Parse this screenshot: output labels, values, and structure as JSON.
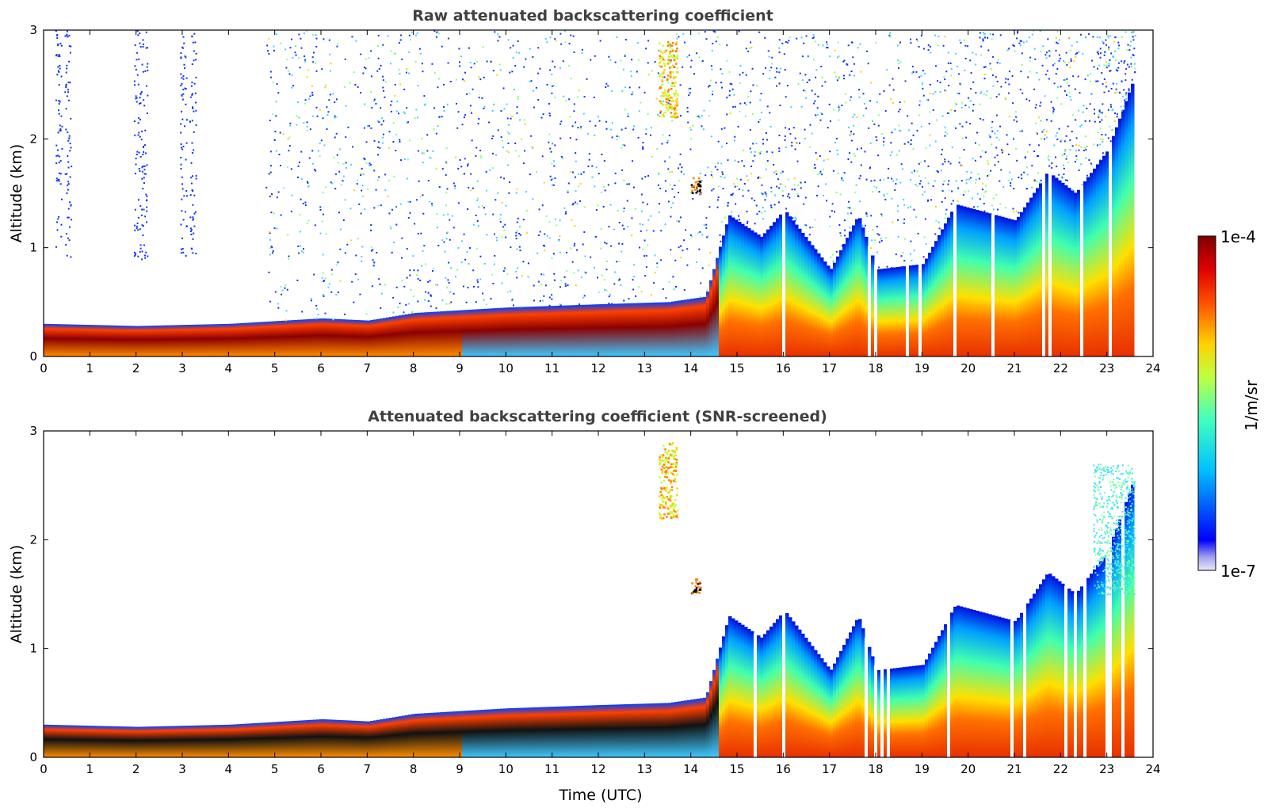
{
  "chart_data": [
    {
      "type": "heatmap",
      "title": "Raw attenuated backscattering coefficient",
      "xlabel": "",
      "ylabel": "Altitude (km)",
      "xlim": [
        0,
        24
      ],
      "ylim": [
        0,
        3
      ],
      "x_ticks": [
        "0",
        "1",
        "2",
        "3",
        "4",
        "5",
        "6",
        "7",
        "8",
        "9",
        "10",
        "11",
        "12",
        "13",
        "14",
        "15",
        "16",
        "17",
        "18",
        "19",
        "20",
        "21",
        "22",
        "23",
        "24"
      ],
      "y_ticks": [
        "0",
        "1",
        "2",
        "3"
      ],
      "screened": false,
      "boundary_layer_top_km": [
        [
          0,
          0.3
        ],
        [
          2,
          0.28
        ],
        [
          4,
          0.3
        ],
        [
          6,
          0.35
        ],
        [
          7,
          0.33
        ],
        [
          8,
          0.4
        ],
        [
          10,
          0.45
        ],
        [
          12,
          0.48
        ],
        [
          13.5,
          0.5
        ],
        [
          14.3,
          0.55
        ],
        [
          14.8,
          1.3
        ],
        [
          15.5,
          1.1
        ],
        [
          16,
          1.35
        ],
        [
          17,
          0.8
        ],
        [
          17.6,
          1.3
        ],
        [
          18,
          0.8
        ],
        [
          19,
          0.85
        ],
        [
          19.7,
          1.4
        ],
        [
          21,
          1.25
        ],
        [
          21.7,
          1.7
        ],
        [
          22.3,
          1.5
        ],
        [
          23,
          1.9
        ],
        [
          23.6,
          2.6
        ]
      ],
      "features": [
        {
          "label": "aerosol layer",
          "x_range": [
            13.3,
            13.7
          ],
          "y_range": [
            2.2,
            2.9
          ]
        },
        {
          "label": "cloud",
          "x_range": [
            14.0,
            14.2
          ],
          "y_range": [
            1.5,
            1.65
          ]
        }
      ]
    },
    {
      "type": "heatmap",
      "title": "Attenuated backscattering coefficient (SNR-screened)",
      "xlabel": "Time (UTC)",
      "ylabel": "Altitude (km)",
      "xlim": [
        0,
        24
      ],
      "ylim": [
        0,
        3
      ],
      "x_ticks": [
        "0",
        "1",
        "2",
        "3",
        "4",
        "5",
        "6",
        "7",
        "8",
        "9",
        "10",
        "11",
        "12",
        "13",
        "14",
        "15",
        "16",
        "17",
        "18",
        "19",
        "20",
        "21",
        "22",
        "23",
        "24"
      ],
      "y_ticks": [
        "0",
        "1",
        "2",
        "3"
      ],
      "screened": true,
      "features": [
        {
          "label": "aerosol layer",
          "x_range": [
            13.3,
            13.7
          ],
          "y_range": [
            2.2,
            2.9
          ]
        },
        {
          "label": "cloud",
          "x_range": [
            14.0,
            14.2
          ],
          "y_range": [
            1.5,
            1.65
          ]
        }
      ]
    }
  ],
  "colorbar": {
    "label": "1/m/sr",
    "max_label": "1e-4",
    "min_label": "1e-7",
    "colormap": "jet"
  }
}
